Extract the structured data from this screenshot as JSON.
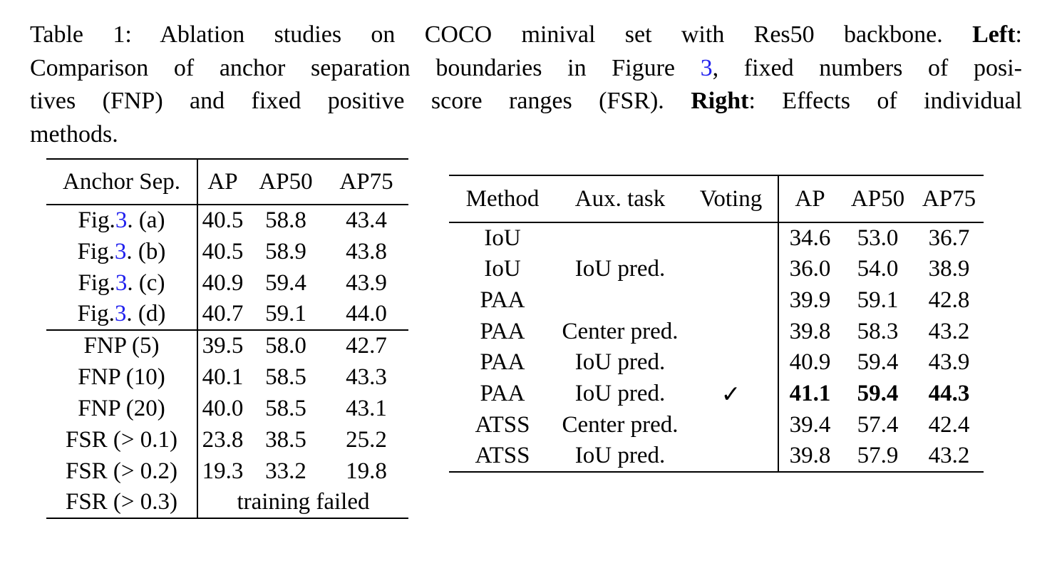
{
  "page": {
    "background": "#ffffff",
    "text_color": "#000000",
    "link_color": "#2222ee"
  },
  "caption": {
    "lines": [
      {
        "justify": true,
        "runs": [
          {
            "t": "Table 1: Ablation studies on COCO minival set with Res50 backbone. ",
            "s": "n"
          },
          {
            "t": "Left",
            "s": "b"
          },
          {
            "t": ":",
            "s": "n"
          }
        ]
      },
      {
        "justify": true,
        "runs": [
          {
            "t": "Comparison of anchor separation boundaries in Figure ",
            "s": "n"
          },
          {
            "t": "3",
            "s": "l"
          },
          {
            "t": ", fixed numbers of posi-",
            "s": "n"
          }
        ]
      },
      {
        "justify": true,
        "runs": [
          {
            "t": "tives (FNP) and fixed positive score ranges (FSR). ",
            "s": "n"
          },
          {
            "t": "Right",
            "s": "b"
          },
          {
            "t": ": Effects of individual",
            "s": "n"
          }
        ]
      },
      {
        "justify": false,
        "runs": [
          {
            "t": "methods.",
            "s": "n"
          }
        ]
      }
    ]
  },
  "left_table": {
    "headers": [
      "Anchor Sep.",
      "AP",
      "AP50",
      "AP75"
    ],
    "sections": [
      {
        "rows": [
          {
            "label": {
              "pre": "Fig.",
              "link": "3",
              "post": ". (a)"
            },
            "values": [
              "40.5",
              "58.8",
              "43.4"
            ]
          },
          {
            "label": {
              "pre": "Fig.",
              "link": "3",
              "post": ". (b)"
            },
            "values": [
              "40.5",
              "58.9",
              "43.8"
            ]
          },
          {
            "label": {
              "pre": "Fig.",
              "link": "3",
              "post": ". (c)"
            },
            "values": [
              "40.9",
              "59.4",
              "43.9"
            ]
          },
          {
            "label": {
              "pre": "Fig.",
              "link": "3",
              "post": ". (d)"
            },
            "values": [
              "40.7",
              "59.1",
              "44.0"
            ]
          }
        ]
      },
      {
        "rows": [
          {
            "label": {
              "pre": "FNP (5)"
            },
            "values": [
              "39.5",
              "58.0",
              "42.7"
            ]
          },
          {
            "label": {
              "pre": "FNP (10)"
            },
            "values": [
              "40.1",
              "58.5",
              "43.3"
            ]
          },
          {
            "label": {
              "pre": "FNP (20)"
            },
            "values": [
              "40.0",
              "58.5",
              "43.1"
            ]
          },
          {
            "label": {
              "pre": "FSR (> 0.1)"
            },
            "values": [
              "23.8",
              "38.5",
              "25.2"
            ]
          },
          {
            "label": {
              "pre": "FSR (> 0.2)"
            },
            "values": [
              "19.3",
              "33.2",
              "19.8"
            ]
          },
          {
            "label": {
              "pre": "FSR (> 0.3)"
            },
            "span": "training failed"
          }
        ]
      }
    ]
  },
  "right_table": {
    "headers": [
      "Method",
      "Aux. task",
      "Voting",
      "AP",
      "AP50",
      "AP75"
    ],
    "check_glyph": "✓",
    "rows": [
      {
        "method": "IoU",
        "aux": "",
        "voting": false,
        "values": [
          "34.6",
          "53.0",
          "36.7"
        ],
        "bold": false
      },
      {
        "method": "IoU",
        "aux": "IoU pred.",
        "voting": false,
        "values": [
          "36.0",
          "54.0",
          "38.9"
        ],
        "bold": false
      },
      {
        "method": "PAA",
        "aux": "",
        "voting": false,
        "values": [
          "39.9",
          "59.1",
          "42.8"
        ],
        "bold": false
      },
      {
        "method": "PAA",
        "aux": "Center pred.",
        "voting": false,
        "values": [
          "39.8",
          "58.3",
          "43.2"
        ],
        "bold": false
      },
      {
        "method": "PAA",
        "aux": "IoU pred.",
        "voting": false,
        "values": [
          "40.9",
          "59.4",
          "43.9"
        ],
        "bold": false
      },
      {
        "method": "PAA",
        "aux": "IoU pred.",
        "voting": true,
        "values": [
          "41.1",
          "59.4",
          "44.3"
        ],
        "bold": true
      },
      {
        "method": "ATSS",
        "aux": "Center pred.",
        "voting": false,
        "values": [
          "39.4",
          "57.4",
          "42.4"
        ],
        "bold": false
      },
      {
        "method": "ATSS",
        "aux": "IoU pred.",
        "voting": false,
        "values": [
          "39.8",
          "57.9",
          "43.2"
        ],
        "bold": false
      }
    ]
  }
}
